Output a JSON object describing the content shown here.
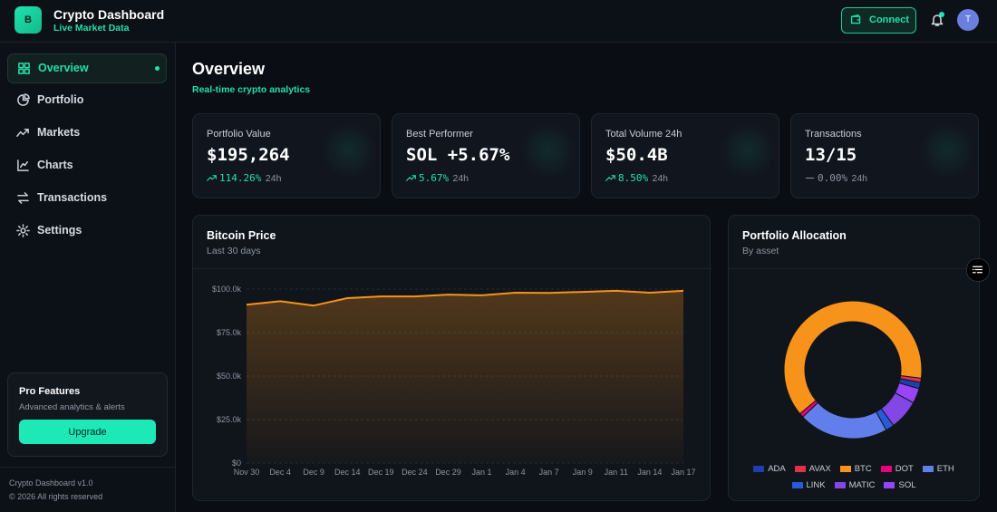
{
  "header": {
    "logo": "B",
    "title": "Crypto Dashboard",
    "subtitle": "Live Market Data",
    "connect": "Connect",
    "avatar": "T"
  },
  "nav": [
    "Overview",
    "Portfolio",
    "Markets",
    "Charts",
    "Transactions",
    "Settings"
  ],
  "pro": {
    "title": "Pro Features",
    "text": "Advanced analytics & alerts",
    "button": "Upgrade"
  },
  "footer": {
    "version": "Crypto Dashboard v1.0",
    "copyright": "© 2026 All rights reserved"
  },
  "page": {
    "title": "Overview",
    "subtitle": "Real-time crypto analytics"
  },
  "cards": [
    {
      "label": "Portfolio Value",
      "value": "$195,264",
      "change": "114.26%",
      "period": "24h",
      "trend": "up"
    },
    {
      "label": "Best Performer",
      "value": "SOL +5.67%",
      "change": "5.67%",
      "period": "24h",
      "trend": "up"
    },
    {
      "label": "Total Volume 24h",
      "value": "$50.4B",
      "change": "8.50%",
      "period": "24h",
      "trend": "up"
    },
    {
      "label": "Transactions",
      "value": "13/15",
      "change": "0.00%",
      "period": "24h",
      "trend": "flat"
    }
  ],
  "chart_data": [
    {
      "type": "area",
      "title": "Bitcoin Price",
      "subtitle": "Last 30 days",
      "categories": [
        "Nov 30",
        "Dec 4",
        "Dec 9",
        "Dec 14",
        "Dec 19",
        "Dec 24",
        "Dec 29",
        "Jan 1",
        "Jan 4",
        "Jan 7",
        "Jan 9",
        "Jan 11",
        "Jan 14",
        "Jan 17"
      ],
      "values": [
        91000,
        93000,
        90500,
        94800,
        95800,
        95800,
        96800,
        96400,
        97900,
        97800,
        98400,
        99000,
        97900,
        99000
      ],
      "color": "#f7931a",
      "ylim": [
        0,
        100000
      ],
      "yticks": [
        {
          "value": 0,
          "label": "$0"
        },
        {
          "value": 25000,
          "label": "$25.0k"
        },
        {
          "value": 50000,
          "label": "$50.0k"
        },
        {
          "value": 75000,
          "label": "$75.0k"
        },
        {
          "value": 100000,
          "label": "$100.0k"
        }
      ],
      "grid": true
    },
    {
      "type": "pie",
      "title": "Portfolio Allocation",
      "subtitle": "By asset",
      "categories": [
        "ADA",
        "AVAX",
        "BTC",
        "DOT",
        "ETH",
        "LINK",
        "MATIC",
        "SOL"
      ],
      "values": [
        1.5,
        1,
        63,
        1,
        21,
        2,
        7,
        3.5
      ],
      "colors": [
        "#1e3fae",
        "#e0304a",
        "#f7931a",
        "#e6007a",
        "#627eea",
        "#2a5ada",
        "#8247e5",
        "#9945ff"
      ],
      "legend": "bottom"
    }
  ]
}
